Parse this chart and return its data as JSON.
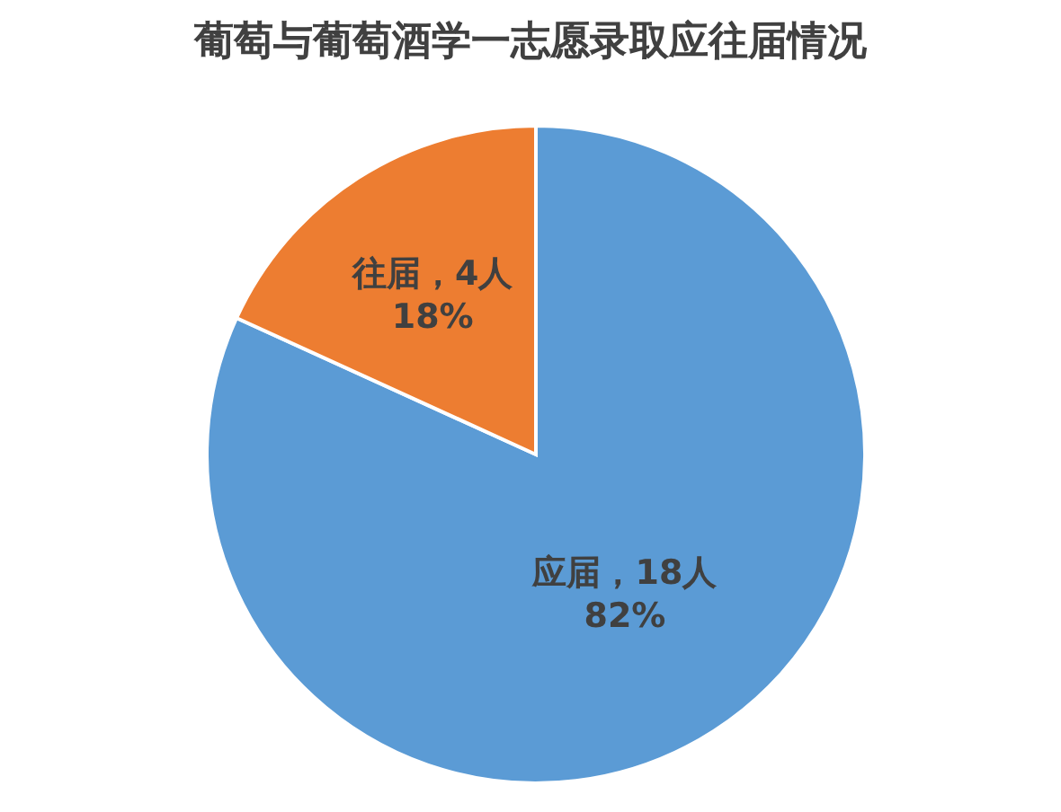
{
  "chart_data": {
    "type": "pie",
    "title": "葡萄与葡萄酒学一志愿录取应往届情况",
    "categories": [
      "应届",
      "往届"
    ],
    "values": [
      18,
      4
    ],
    "value_labels": [
      "18人\n82%",
      "4人\n18%"
    ],
    "colors": [
      "#5b9bd5",
      "#ed7d31"
    ]
  }
}
